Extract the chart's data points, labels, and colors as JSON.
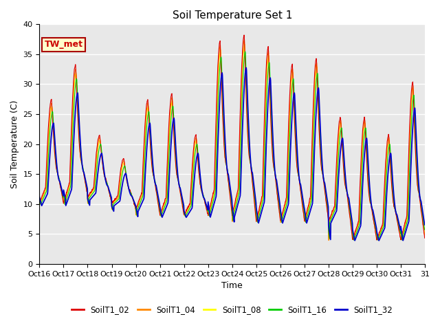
{
  "title": "Soil Temperature Set 1",
  "xlabel": "Time",
  "ylabel": "Soil Temperature (C)",
  "ylim": [
    0,
    40
  ],
  "yticks": [
    0,
    5,
    10,
    15,
    20,
    25,
    30,
    35,
    40
  ],
  "series_labels": [
    "SoilT1_02",
    "SoilT1_04",
    "SoilT1_08",
    "SoilT1_16",
    "SoilT1_32"
  ],
  "series_colors": [
    "#dd0000",
    "#ff8800",
    "#ffff00",
    "#00cc00",
    "#0000cc"
  ],
  "annotation_text": "TW_met",
  "annotation_box_facecolor": "#ffffcc",
  "annotation_box_edgecolor": "#aa0000",
  "annotation_text_color": "#cc0000",
  "bg_color": "#e8e8e8",
  "fig_color": "#ffffff",
  "n_days": 16,
  "pts_per_day": 96,
  "xtick_labels": [
    "Oct 16",
    "Oct 17",
    "Oct 18",
    "Oct 19",
    "Oct 20",
    "Oct 21",
    "Oct 22",
    "Oct 23",
    "Oct 24",
    "Oct 25",
    "Oct 26",
    "Oct 27",
    "Oct 28",
    "Oct 29",
    "Oct 30",
    "Oct 31"
  ],
  "last_xtick": "31",
  "day_peaks_08": [
    28,
    34,
    22,
    18,
    28,
    29,
    22,
    38,
    39,
    37,
    34,
    35,
    25,
    25,
    22,
    31
  ],
  "day_peaks_rel": [
    0.98,
    0.96,
    0.94,
    0.91,
    0.84
  ],
  "day_lags": [
    0.0,
    0.012,
    0.025,
    0.05,
    0.09
  ],
  "day_troughs": [
    10,
    10,
    11,
    10,
    9,
    8,
    8,
    8,
    8,
    7,
    7,
    7,
    7,
    4,
    4,
    4
  ],
  "trough_rel": [
    1.02,
    1.01,
    1.0,
    0.99,
    0.97
  ],
  "peak_sharpness": 0.25,
  "grid_color": "#ffffff",
  "grid_lw": 1.0
}
